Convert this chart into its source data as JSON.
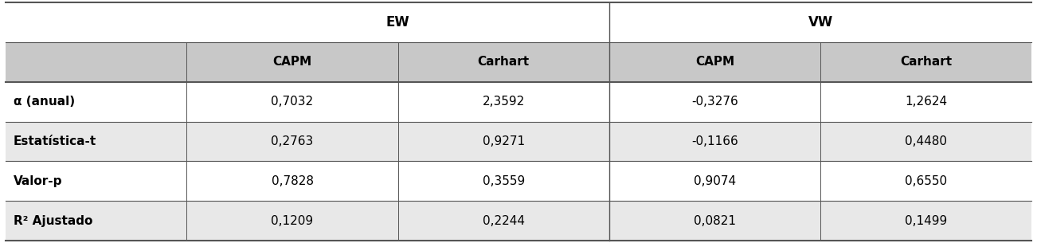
{
  "header_row": [
    "",
    "CAPM",
    "Carhart",
    "CAPM",
    "Carhart"
  ],
  "rows": [
    [
      "α (anual)",
      "0,7032",
      "2,3592",
      "-0,3276",
      "1,2624"
    ],
    [
      "Estatística-t",
      "0,2763",
      "0,9271",
      "-0,1166",
      "0,4480"
    ],
    [
      "Valor-p",
      "0,7828",
      "0,3559",
      "0,9074",
      "0,6550"
    ],
    [
      "R² Ajustado",
      "0,1209",
      "0,2244",
      "0,0821",
      "0,1499"
    ]
  ],
  "ew_label": "EW",
  "vw_label": "VW",
  "bg_gray_dark": "#c8c8c8",
  "bg_gray_light": "#e8e8e8",
  "bg_white": "#ffffff",
  "text_color": "#000000",
  "border_color": "#555555",
  "title_fontsize": 12,
  "header_fontsize": 11,
  "row_fontsize": 11,
  "figsize": [
    13.02,
    3.05
  ],
  "dpi": 100
}
